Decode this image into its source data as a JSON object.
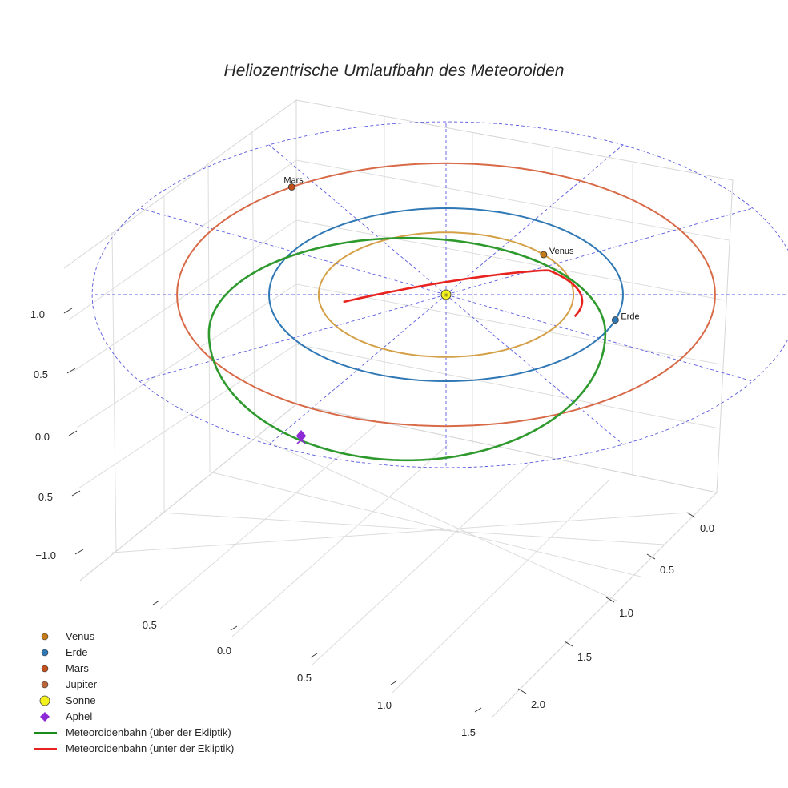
{
  "chart_data": {
    "type": "line",
    "title": "Heliozentrische Umlaufbahn des Meteoroiden",
    "projection": "3d",
    "x_ticks": [
      "−0.5",
      "0.0",
      "0.5",
      "1.0",
      "1.5"
    ],
    "y_ticks": [
      "0.0",
      "0.5",
      "1.0",
      "1.5",
      "2.0"
    ],
    "z_ticks": [
      "1.0",
      "0.5",
      "0.0",
      "−0.5",
      "−1.0"
    ],
    "ecliptic_grid": true,
    "legend_position": "lower-left",
    "legend": [
      {
        "name": "Venus",
        "kind": "dot",
        "color": "#c47a1a"
      },
      {
        "name": "Erde",
        "kind": "dot",
        "color": "#2f78b5"
      },
      {
        "name": "Mars",
        "kind": "dot",
        "color": "#c2501a"
      },
      {
        "name": "Jupiter",
        "kind": "dot",
        "color": "#b8653a"
      },
      {
        "name": "Sonne",
        "kind": "sun",
        "color": "#f4f21c"
      },
      {
        "name": "Aphel",
        "kind": "diamond",
        "color": "#8e2ad6"
      },
      {
        "name": "Meteoroidenbahn (über der Ekliptik)",
        "kind": "line",
        "color": "#1a8a1a"
      },
      {
        "name": "Meteoroidenbahn (unter der Ekliptik)",
        "kind": "line",
        "color": "#e8231f"
      }
    ],
    "orbits": [
      {
        "name": "Venus",
        "radius_au": 0.72,
        "color": "#d4a048"
      },
      {
        "name": "Erde",
        "radius_au": 1.0,
        "color": "#2f78b5"
      },
      {
        "name": "Mars",
        "radius_au": 1.52,
        "color": "#d86a48"
      }
    ],
    "labeled_planets": [
      {
        "name": "Mars",
        "angle_deg": 125
      },
      {
        "name": "Venus",
        "angle_deg": 40
      },
      {
        "name": "Erde",
        "angle_deg": -17
      }
    ],
    "meteoroid": {
      "perihelion_au": 1.0,
      "aphelion_au": 1.2,
      "center_offset": 0.1,
      "above_color": "#2e9a2e",
      "below_color": "#e8231f"
    }
  }
}
